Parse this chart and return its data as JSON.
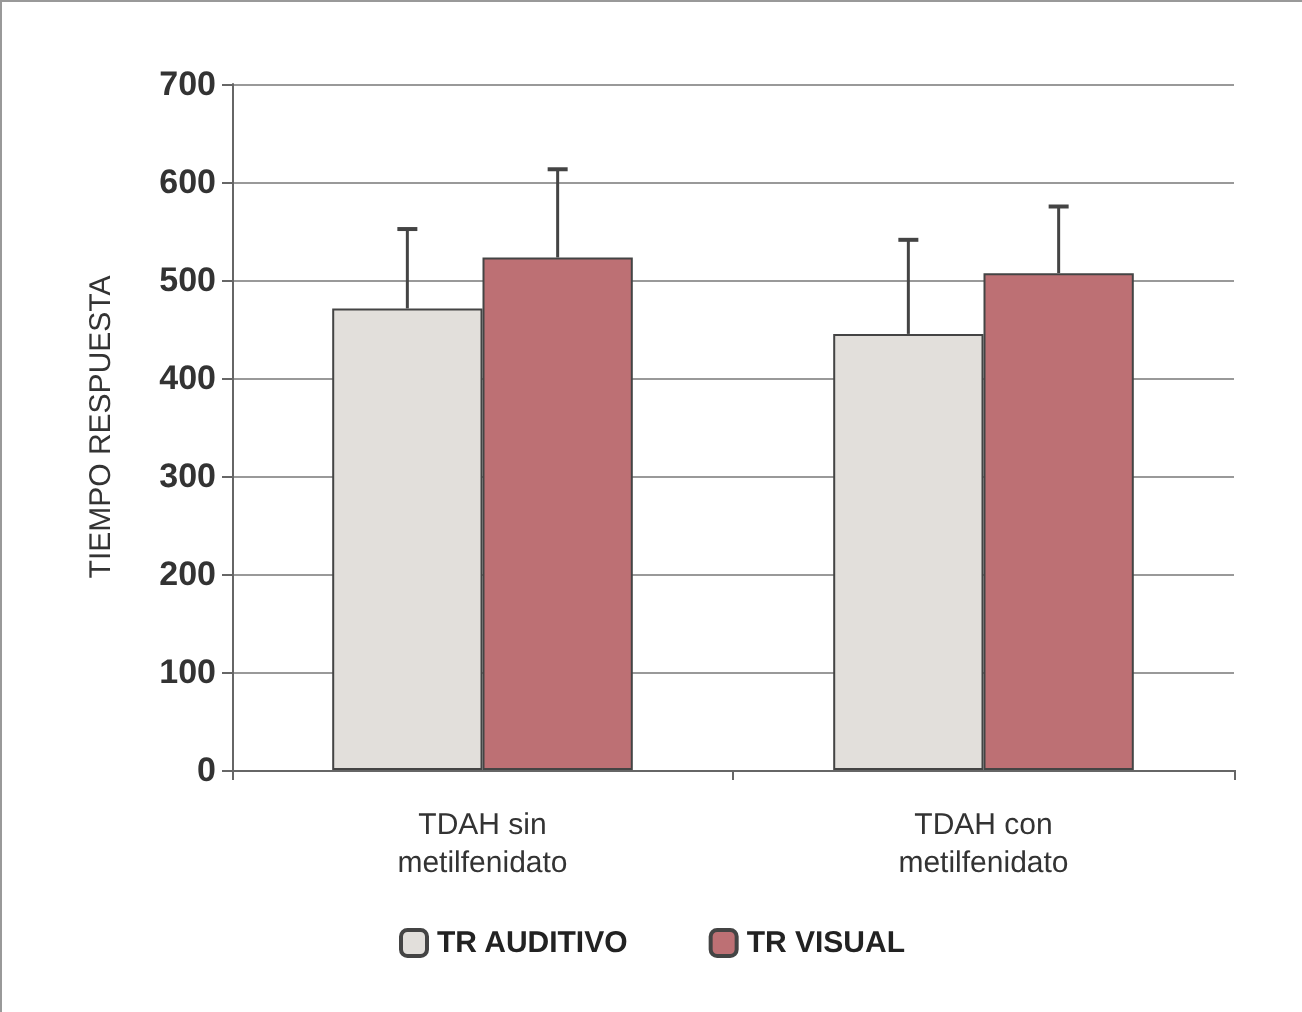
{
  "chart_data": {
    "type": "bar",
    "ylabel": "TIEMPO RESPUESTA",
    "categories": [
      "TDAH sin\nmetilfenidato",
      "TDAH con\nmetilfenidato"
    ],
    "series": [
      {
        "name": "TR AUDITIVO",
        "color": "#e2dfdb",
        "values": [
          471,
          445
        ],
        "errors": [
          81,
          96
        ]
      },
      {
        "name": "TR VISUAL",
        "color": "#bd7074",
        "values": [
          523,
          507
        ],
        "errors": [
          90,
          68
        ]
      }
    ],
    "ylim": [
      0,
      700
    ],
    "yticks": [
      0,
      100,
      200,
      300,
      400,
      500,
      600,
      700
    ],
    "grid": "y",
    "legend": "bottom"
  }
}
